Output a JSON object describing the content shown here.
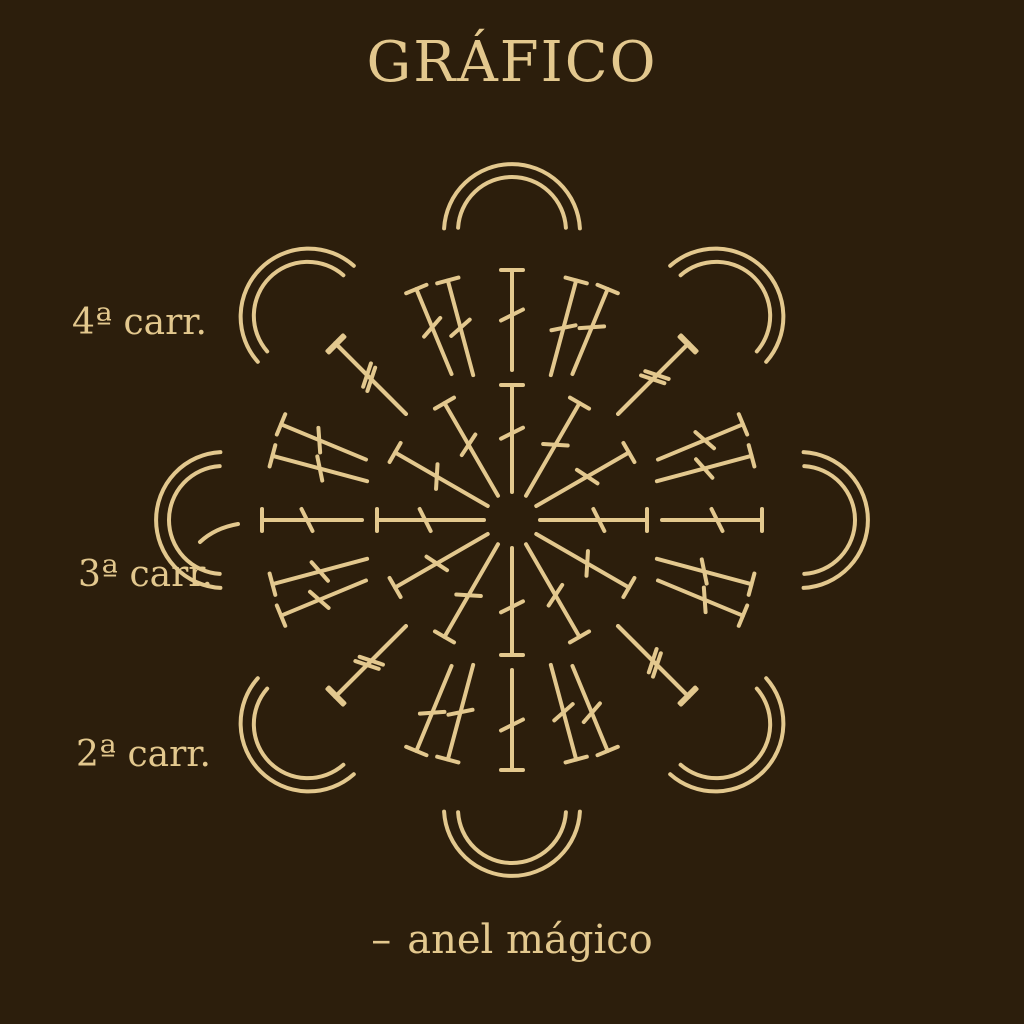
{
  "title": "GRÁFICO",
  "row_labels": {
    "row4": "4ª carr.",
    "row3": "3ª carr.",
    "row2": "2ª carr."
  },
  "legend": {
    "symbol": "–",
    "text": "anel mágico"
  },
  "colors": {
    "background": "#2c1e0c",
    "ink": "#e3c88e"
  },
  "diagram": {
    "inner_spokes": 12,
    "middle_spokes": 12,
    "outer_spokes": 16,
    "petals": 8
  }
}
